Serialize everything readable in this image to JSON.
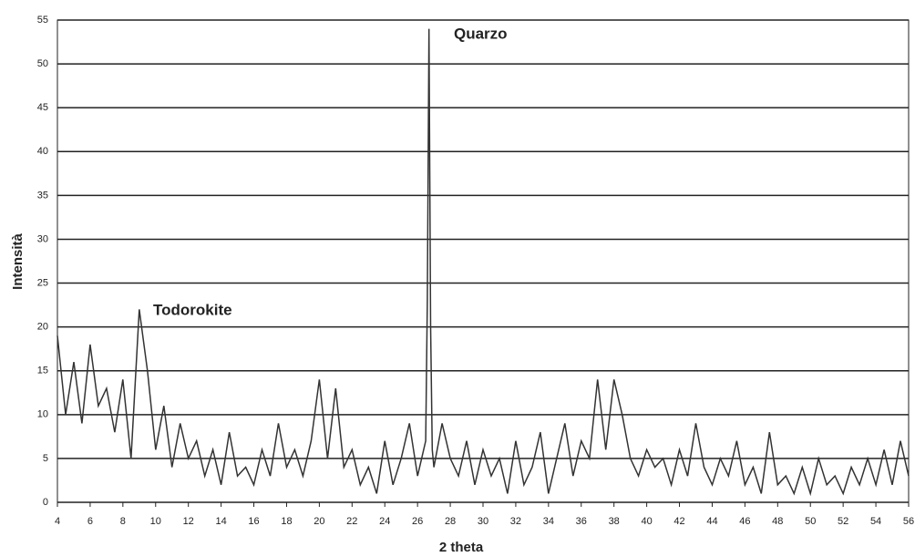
{
  "chart_data": {
    "type": "line",
    "x_label": "2 theta",
    "y_label": "Intensità",
    "annotations": [
      "Quarzo",
      "Todorokite"
    ],
    "x": [
      4,
      4.5,
      5,
      5.5,
      6,
      6.5,
      7,
      7.5,
      8,
      8.5,
      9,
      9.5,
      10,
      10.5,
      11,
      11.5,
      12,
      12.5,
      13,
      13.5,
      14,
      14.5,
      15,
      15.5,
      16,
      16.5,
      17,
      17.5,
      18,
      18.5,
      19,
      19.5,
      20,
      20.5,
      21,
      21.5,
      22,
      22.5,
      23,
      23.5,
      24,
      24.5,
      25,
      25.5,
      26,
      26.5,
      26.6,
      26.7,
      26.8,
      26.9,
      27,
      27.5,
      28,
      28.5,
      29,
      29.5,
      30,
      30.5,
      31,
      31.5,
      32,
      32.5,
      33,
      33.5,
      34,
      34.5,
      35,
      35.5,
      36,
      36.5,
      37,
      37.5,
      38,
      38.5,
      39,
      39.5,
      40,
      40.5,
      41,
      41.5,
      42,
      42.5,
      43,
      43.5,
      44,
      44.5,
      45,
      45.5,
      46,
      46.5,
      47,
      47.5,
      48,
      48.5,
      49,
      49.5,
      50,
      50.5,
      51,
      51.5,
      52,
      52.5,
      53,
      53.5,
      54,
      54.5,
      55,
      55.5,
      56
    ],
    "series": [
      {
        "name": "Intensità",
        "color": "#333333",
        "values": [
          19,
          10,
          16,
          9,
          18,
          11,
          13,
          8,
          14,
          5,
          22,
          15,
          6,
          11,
          4,
          9,
          5,
          7,
          3,
          6,
          2,
          8,
          3,
          4,
          2,
          6,
          3,
          9,
          4,
          6,
          3,
          7,
          14,
          5,
          13,
          4,
          6,
          2,
          4,
          1,
          7,
          2,
          5,
          9,
          3,
          7,
          23,
          54,
          20,
          6,
          4,
          9,
          5,
          3,
          7,
          2,
          6,
          3,
          5,
          1,
          7,
          2,
          4,
          8,
          1,
          5,
          9,
          3,
          7,
          5,
          14,
          6,
          14,
          10,
          5,
          3,
          6,
          4,
          5,
          2,
          6,
          3,
          9,
          4,
          2,
          5,
          3,
          7,
          2,
          4,
          1,
          8,
          2,
          3,
          1,
          4,
          1,
          5,
          2,
          3,
          1,
          4,
          2,
          5,
          2,
          6,
          2,
          7,
          3
        ]
      }
    ],
    "xlim": [
      4,
      56
    ],
    "ylim": [
      0,
      55
    ],
    "xticks": [
      4,
      6,
      8,
      10,
      12,
      14,
      16,
      18,
      20,
      22,
      24,
      26,
      28,
      30,
      32,
      34,
      36,
      38,
      40,
      42,
      44,
      46,
      48,
      50,
      52,
      54,
      56
    ],
    "yticks": [
      0,
      5,
      10,
      15,
      20,
      25,
      30,
      35,
      40,
      45,
      50,
      55
    ],
    "grid": true
  }
}
